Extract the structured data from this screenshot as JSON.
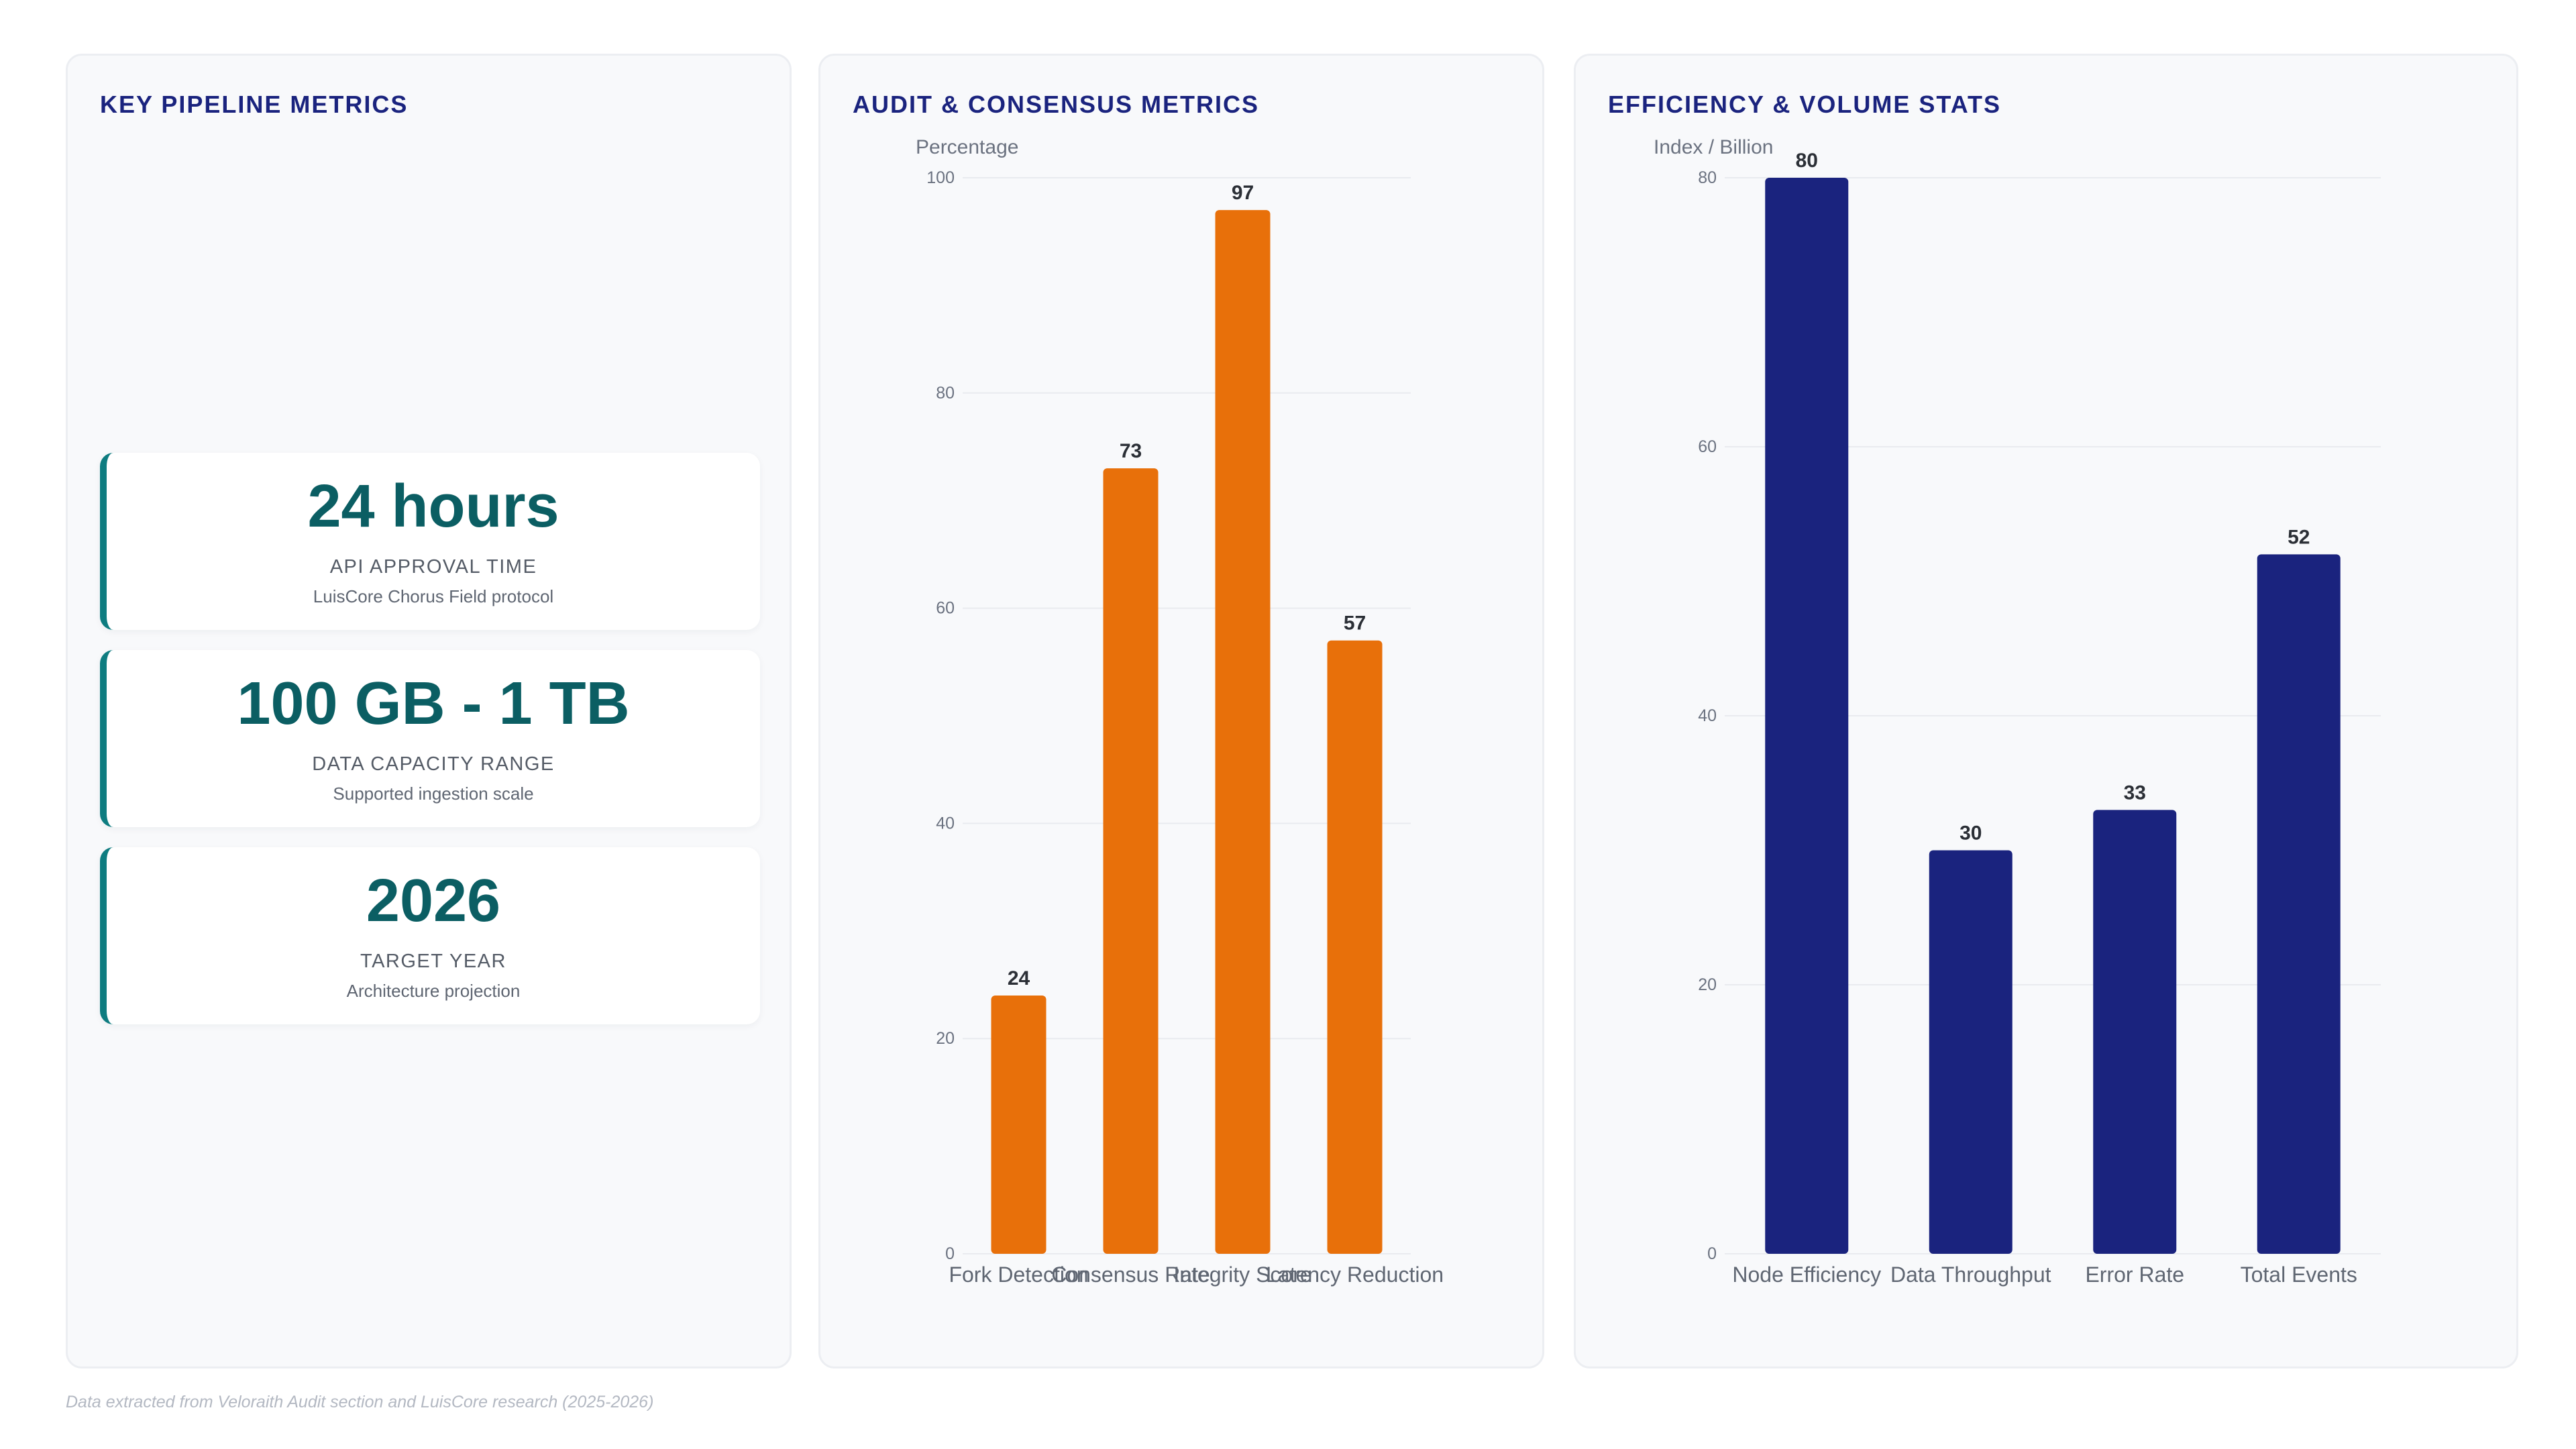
{
  "footer": "Data extracted from Veloraith Audit section and LuisCore research (2025-2026)",
  "kpi_panel": {
    "title": "KEY PIPELINE METRICS",
    "cards": [
      {
        "value": "24 hours",
        "label": "API APPROVAL TIME",
        "sub": "LuisCore Chorus Field protocol"
      },
      {
        "value": "100 GB - 1 TB",
        "label": "DATA CAPACITY RANGE",
        "sub": "Supported ingestion scale"
      },
      {
        "value": "2026",
        "label": "TARGET YEAR",
        "sub": "Architecture projection"
      }
    ],
    "accent_color": "#0e7c80"
  },
  "audit_panel": {
    "title": "AUDIT & CONSENSUS METRICS"
  },
  "efficiency_panel": {
    "title": "EFFICIENCY & VOLUME STATS"
  },
  "chart_data": [
    {
      "type": "bar",
      "title": "AUDIT & CONSENSUS METRICS",
      "ylabel": "Percentage",
      "categories": [
        "Fork Detection",
        "Consensus Rate",
        "Integrity Score",
        "Latency Reduction"
      ],
      "values": [
        24,
        73,
        97,
        57
      ],
      "ylim": [
        0,
        100
      ],
      "yticks": [
        0,
        20,
        40,
        60,
        80,
        100
      ],
      "grid": true,
      "color": "#e8700a"
    },
    {
      "type": "bar",
      "title": "EFFICIENCY & VOLUME STATS",
      "ylabel": "Index / Billion",
      "categories": [
        "Node Efficiency",
        "Data Throughput",
        "Error Rate",
        "Total Events"
      ],
      "values": [
        80,
        30,
        33,
        52
      ],
      "ylim": [
        0,
        80
      ],
      "yticks": [
        0,
        20,
        40,
        60,
        80
      ],
      "grid": true,
      "color": "#1a237e"
    }
  ]
}
